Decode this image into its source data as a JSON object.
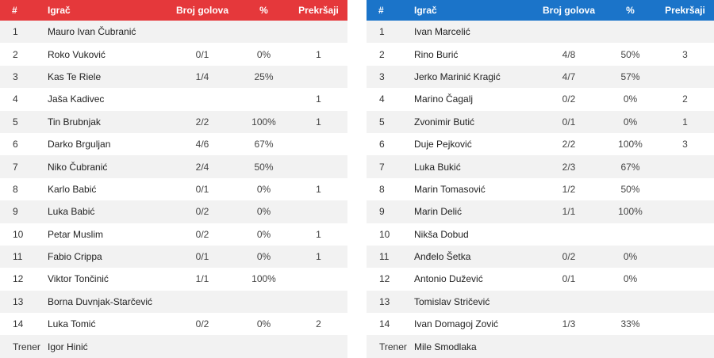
{
  "headers": {
    "num": "#",
    "player": "Igrač",
    "goals": "Broj golova",
    "pct": "%",
    "fouls": "Prekršaji"
  },
  "coach_label": "Trener",
  "colors": {
    "home_header": "#e5383b",
    "away_header": "#1b74c9"
  },
  "home": {
    "coach": "Igor Hinić",
    "players": [
      {
        "num": "1",
        "name": "Mauro Ivan Čubranić",
        "goals": "",
        "pct": "",
        "fouls": ""
      },
      {
        "num": "2",
        "name": "Roko Vuković",
        "goals": "0/1",
        "pct": "0%",
        "fouls": "1"
      },
      {
        "num": "3",
        "name": "Kas Te Riele",
        "goals": "1/4",
        "pct": "25%",
        "fouls": ""
      },
      {
        "num": "4",
        "name": "Jaša Kadivec",
        "goals": "",
        "pct": "",
        "fouls": "1"
      },
      {
        "num": "5",
        "name": "Tin Brubnjak",
        "goals": "2/2",
        "pct": "100%",
        "fouls": "1"
      },
      {
        "num": "6",
        "name": "Darko Brguljan",
        "goals": "4/6",
        "pct": "67%",
        "fouls": ""
      },
      {
        "num": "7",
        "name": "Niko Čubranić",
        "goals": "2/4",
        "pct": "50%",
        "fouls": ""
      },
      {
        "num": "8",
        "name": "Karlo Babić",
        "goals": "0/1",
        "pct": "0%",
        "fouls": "1"
      },
      {
        "num": "9",
        "name": "Luka Babić",
        "goals": "0/2",
        "pct": "0%",
        "fouls": ""
      },
      {
        "num": "10",
        "name": "Petar Muslim",
        "goals": "0/2",
        "pct": "0%",
        "fouls": "1"
      },
      {
        "num": "11",
        "name": "Fabio Crippa",
        "goals": "0/1",
        "pct": "0%",
        "fouls": "1"
      },
      {
        "num": "12",
        "name": "Viktor Tončinić",
        "goals": "1/1",
        "pct": "100%",
        "fouls": ""
      },
      {
        "num": "13",
        "name": "Borna Duvnjak-Starčević",
        "goals": "",
        "pct": "",
        "fouls": ""
      },
      {
        "num": "14",
        "name": "Luka Tomić",
        "goals": "0/2",
        "pct": "0%",
        "fouls": "2"
      }
    ]
  },
  "away": {
    "coach": "Mile Smodlaka",
    "players": [
      {
        "num": "1",
        "name": "Ivan Marcelić",
        "goals": "",
        "pct": "",
        "fouls": ""
      },
      {
        "num": "2",
        "name": "Rino Burić",
        "goals": "4/8",
        "pct": "50%",
        "fouls": "3"
      },
      {
        "num": "3",
        "name": "Jerko Marinić Kragić",
        "goals": "4/7",
        "pct": "57%",
        "fouls": ""
      },
      {
        "num": "4",
        "name": "Marino Čagalj",
        "goals": "0/2",
        "pct": "0%",
        "fouls": "2"
      },
      {
        "num": "5",
        "name": "Zvonimir Butić",
        "goals": "0/1",
        "pct": "0%",
        "fouls": "1"
      },
      {
        "num": "6",
        "name": "Duje Pejković",
        "goals": "2/2",
        "pct": "100%",
        "fouls": "3"
      },
      {
        "num": "7",
        "name": "Luka Bukić",
        "goals": "2/3",
        "pct": "67%",
        "fouls": ""
      },
      {
        "num": "8",
        "name": "Marin Tomasović",
        "goals": "1/2",
        "pct": "50%",
        "fouls": ""
      },
      {
        "num": "9",
        "name": "Marin Delić",
        "goals": "1/1",
        "pct": "100%",
        "fouls": ""
      },
      {
        "num": "10",
        "name": "Nikša Dobud",
        "goals": "",
        "pct": "",
        "fouls": ""
      },
      {
        "num": "11",
        "name": "Anđelo Šetka",
        "goals": "0/2",
        "pct": "0%",
        "fouls": ""
      },
      {
        "num": "12",
        "name": "Antonio Dužević",
        "goals": "0/1",
        "pct": "0%",
        "fouls": ""
      },
      {
        "num": "13",
        "name": "Tomislav Stričević",
        "goals": "",
        "pct": "",
        "fouls": ""
      },
      {
        "num": "14",
        "name": "Ivan Domagoj Zović",
        "goals": "1/3",
        "pct": "33%",
        "fouls": ""
      }
    ]
  }
}
